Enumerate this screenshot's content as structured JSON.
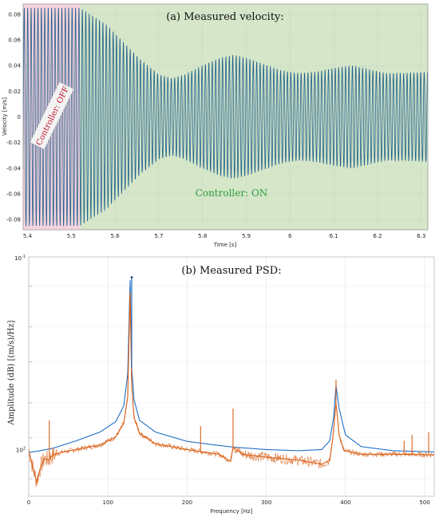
{
  "colors": {
    "velocity_line": "#1f5f8b",
    "off_region": "#f6d3de",
    "on_region": "#d5e6c9",
    "controller_off_text": "#c0162c",
    "controller_on_text": "#2e9e3e",
    "psd_blue": "#1f6fc6",
    "psd_orange": "#d95f17",
    "grid": "#d9d9d9"
  },
  "chart_data": [
    {
      "type": "line",
      "title": "(a) Measured velocity:",
      "xlabel": "Time [s]",
      "ylabel": "Velocity [m/s]",
      "xlim": [
        5.39,
        6.315
      ],
      "ylim": [
        -0.088,
        0.088
      ],
      "xticks": [
        "5.4",
        "5.5",
        "5.6",
        "5.7",
        "5.8",
        "5.9",
        "6",
        "6.1",
        "6.2",
        "6.3"
      ],
      "yticks": [
        "0.08",
        "0.06",
        "0.04",
        "0.02",
        "0",
        "-0.02",
        "-0.04",
        "-0.06",
        "-0.08"
      ],
      "regions": [
        {
          "label": "Controller: OFF",
          "x_start": 5.39,
          "x_end": 5.52
        },
        {
          "label": "Controller: ON",
          "x_start": 5.52,
          "x_end": 6.315
        }
      ],
      "signal": {
        "frequency_hz": 128,
        "envelope": {
          "x": [
            5.39,
            5.52,
            5.58,
            5.62,
            5.66,
            5.7,
            5.73,
            5.76,
            5.8,
            5.84,
            5.87,
            5.9,
            5.94,
            5.98,
            6.02,
            6.06,
            6.1,
            6.14,
            6.18,
            6.22,
            6.26,
            6.315
          ],
          "amplitude": [
            0.085,
            0.085,
            0.072,
            0.058,
            0.044,
            0.033,
            0.03,
            0.033,
            0.04,
            0.046,
            0.048,
            0.046,
            0.041,
            0.036,
            0.034,
            0.035,
            0.038,
            0.04,
            0.037,
            0.034,
            0.034,
            0.035
          ]
        }
      }
    },
    {
      "type": "line",
      "title": "(b) Measured PSD:",
      "xlabel": "Frequency [Hz]",
      "ylabel": "Amplitude (dB) [(m/s)/Hz]",
      "xlim": [
        0,
        512
      ],
      "ylim": [
        -109,
        -68
      ],
      "y_scale": "log",
      "xticks": [
        "0",
        "100",
        "200",
        "300",
        "400",
        "500"
      ],
      "yticks": [
        "10^{-1}",
        "10^{2}"
      ],
      "grid": true,
      "series": [
        {
          "color": "blue",
          "x": [
            0,
            10,
            30,
            60,
            90,
            110,
            120,
            125,
            128,
            130,
            133,
            140,
            160,
            200,
            240,
            260,
            300,
            340,
            370,
            380,
            385,
            388,
            392,
            400,
            420,
            460,
            512
          ],
          "y": [
            -101.5,
            -101.3,
            -100.8,
            -99.5,
            -98.0,
            -96.2,
            -93.5,
            -88.0,
            -72.0,
            -87.0,
            -92.5,
            -96.0,
            -98.0,
            -99.6,
            -100.3,
            -100.6,
            -101.0,
            -101.2,
            -101.0,
            -99.5,
            -95.5,
            -90.0,
            -94.0,
            -98.5,
            -100.5,
            -101.2,
            -101.4
          ],
          "spikes": [
            {
              "x": 130,
              "y": -71.5
            }
          ]
        },
        {
          "color": "orange",
          "x": [
            0,
            5,
            10,
            15,
            20,
            25,
            30,
            40,
            60,
            90,
            110,
            120,
            125,
            128,
            130,
            133,
            140,
            160,
            200,
            240,
            255,
            258,
            262,
            270,
            300,
            340,
            370,
            380,
            384,
            388,
            392,
            398,
            420,
            460,
            512
          ],
          "y": [
            -101.0,
            -104.0,
            -106.5,
            -104.0,
            -102.5,
            -102.8,
            -102.0,
            -101.5,
            -101.0,
            -100.2,
            -98.8,
            -96.5,
            -92.0,
            -74.0,
            -90.0,
            -95.5,
            -98.2,
            -100.0,
            -101.0,
            -101.8,
            -103.0,
            -100.5,
            -101.0,
            -101.8,
            -102.3,
            -102.8,
            -103.5,
            -102.8,
            -99.0,
            -93.0,
            -98.5,
            -101.2,
            -101.8,
            -101.8,
            -101.9
          ],
          "spikes": [
            {
              "x": 26,
              "y": -96.0
            },
            {
              "x": 217,
              "y": -97.0
            },
            {
              "x": 258,
              "y": -94.0
            },
            {
              "x": 388,
              "y": -89.0
            },
            {
              "x": 474,
              "y": -99.5
            },
            {
              "x": 484,
              "y": -98.5
            },
            {
              "x": 505,
              "y": -98.0
            }
          ]
        }
      ]
    }
  ]
}
